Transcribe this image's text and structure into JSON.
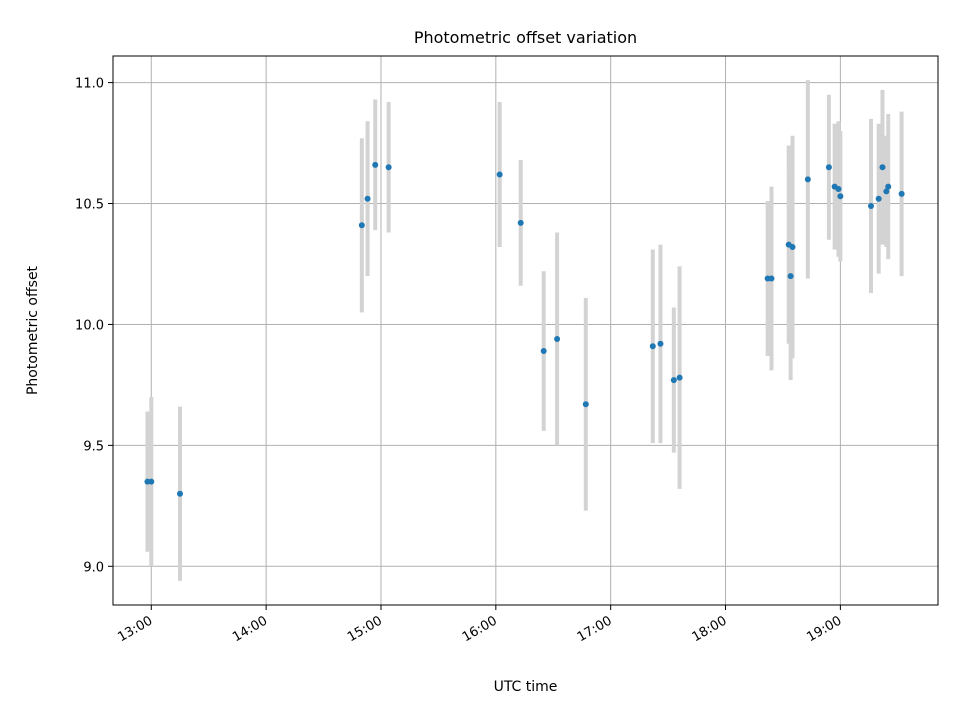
{
  "chart_data": {
    "type": "scatter",
    "title": "Photometric offset variation",
    "xlabel": "UTC time",
    "ylabel": "Photometric offset",
    "x_tick_labels": [
      "13:00",
      "14:00",
      "15:00",
      "16:00",
      "17:00",
      "18:00",
      "19:00"
    ],
    "y_tick_labels": [
      "9.0",
      "9.5",
      "10.0",
      "10.5",
      "11.0"
    ],
    "y_ticks": [
      9.0,
      9.5,
      10.0,
      10.5,
      11.0
    ],
    "x_ticks": [
      "13:00",
      "14:00",
      "15:00",
      "16:00",
      "17:00",
      "18:00",
      "19:00"
    ],
    "xlim": [
      "12:40",
      "19:51"
    ],
    "ylim": [
      8.84,
      11.11
    ],
    "grid": true,
    "colors": {
      "point": "#1f77b4",
      "errorbar": "#d3d3d3",
      "grid": "#b0b0b0"
    },
    "points": [
      {
        "x": "12:58",
        "y": 9.35,
        "err": 0.29
      },
      {
        "x": "13:00",
        "y": 9.35,
        "err": 0.35
      },
      {
        "x": "13:15",
        "y": 9.3,
        "err": 0.36
      },
      {
        "x": "14:50",
        "y": 10.41,
        "err": 0.36
      },
      {
        "x": "14:53",
        "y": 10.52,
        "err": 0.32
      },
      {
        "x": "14:57",
        "y": 10.66,
        "err": 0.27
      },
      {
        "x": "15:04",
        "y": 10.65,
        "err": 0.27
      },
      {
        "x": "16:02",
        "y": 10.62,
        "err": 0.3
      },
      {
        "x": "16:13",
        "y": 10.42,
        "err": 0.26
      },
      {
        "x": "16:25",
        "y": 9.89,
        "err": 0.33
      },
      {
        "x": "16:32",
        "y": 9.94,
        "err": 0.44
      },
      {
        "x": "16:47",
        "y": 9.67,
        "err": 0.44
      },
      {
        "x": "17:22",
        "y": 9.91,
        "err": 0.4
      },
      {
        "x": "17:26",
        "y": 9.92,
        "err": 0.41
      },
      {
        "x": "17:33",
        "y": 9.77,
        "err": 0.3
      },
      {
        "x": "17:36",
        "y": 9.78,
        "err": 0.46
      },
      {
        "x": "18:22",
        "y": 10.19,
        "err": 0.32
      },
      {
        "x": "18:24",
        "y": 10.19,
        "err": 0.38
      },
      {
        "x": "18:33",
        "y": 10.33,
        "err": 0.41
      },
      {
        "x": "18:34",
        "y": 10.2,
        "err": 0.43
      },
      {
        "x": "18:35",
        "y": 10.32,
        "err": 0.46
      },
      {
        "x": "18:43",
        "y": 10.6,
        "err": 0.41
      },
      {
        "x": "18:54",
        "y": 10.65,
        "err": 0.3
      },
      {
        "x": "18:57",
        "y": 10.57,
        "err": 0.26
      },
      {
        "x": "18:59",
        "y": 10.56,
        "err": 0.28
      },
      {
        "x": "19:00",
        "y": 10.53,
        "err": 0.27
      },
      {
        "x": "19:16",
        "y": 10.49,
        "err": 0.36
      },
      {
        "x": "19:20",
        "y": 10.52,
        "err": 0.31
      },
      {
        "x": "19:22",
        "y": 10.65,
        "err": 0.32
      },
      {
        "x": "19:24",
        "y": 10.55,
        "err": 0.23
      },
      {
        "x": "19:25",
        "y": 10.57,
        "err": 0.3
      },
      {
        "x": "19:32",
        "y": 10.54,
        "err": 0.34
      }
    ]
  }
}
